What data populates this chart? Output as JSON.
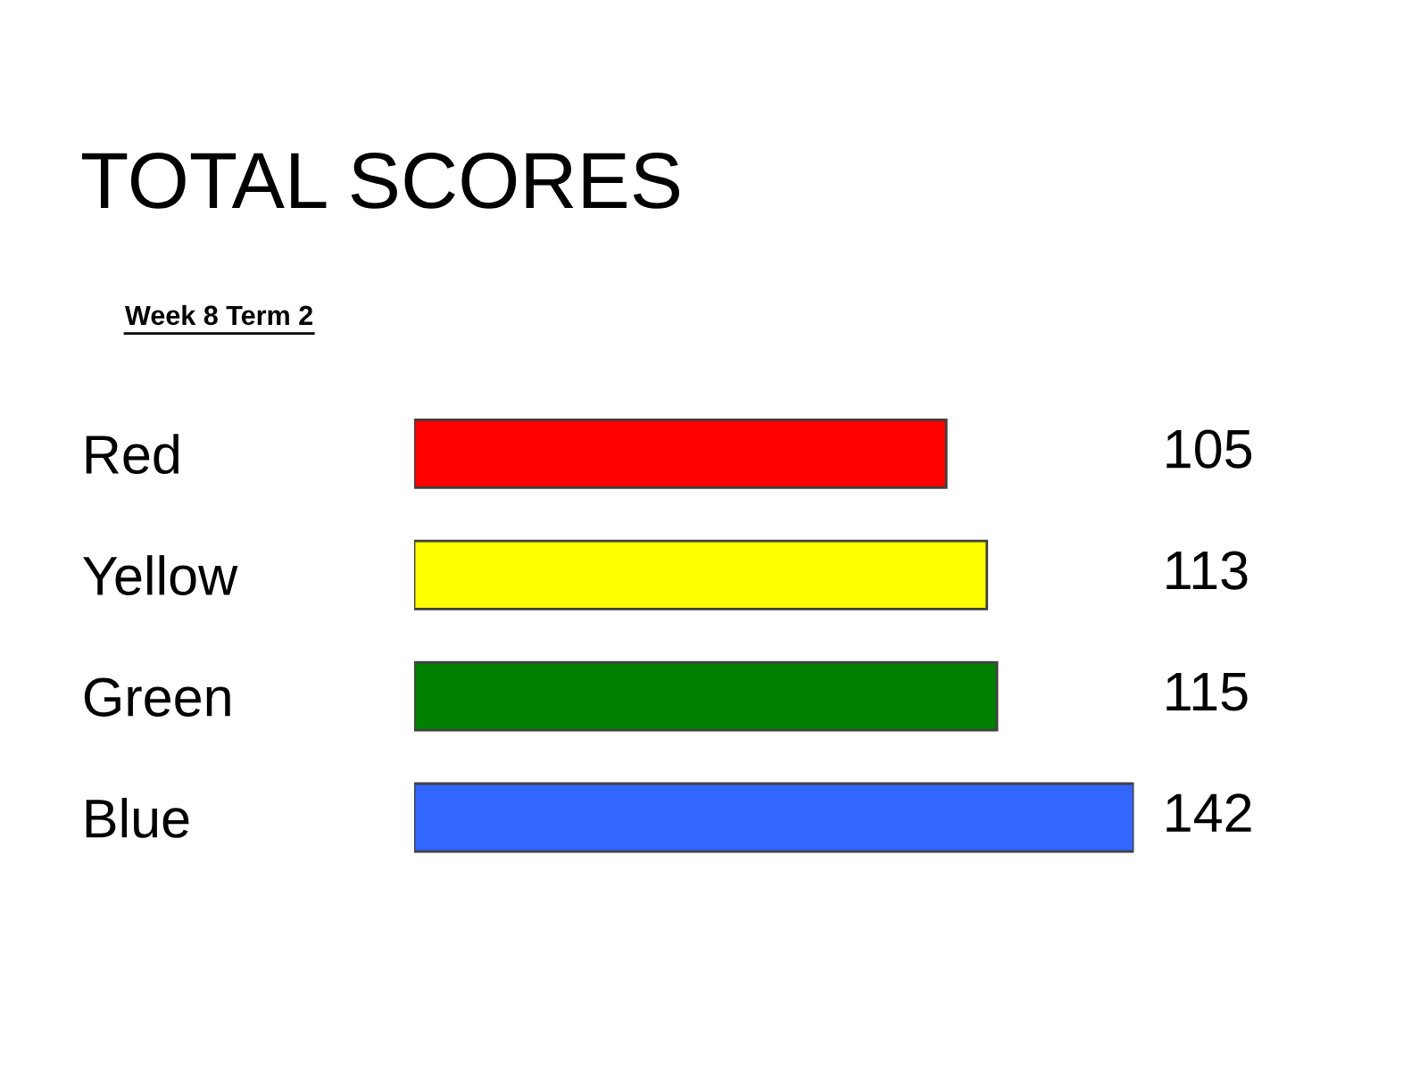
{
  "chart_data": {
    "type": "bar",
    "title": "TOTAL SCORES",
    "subtitle": "Week 8 Term 2",
    "orientation": "horizontal",
    "categories": [
      "Red",
      "Yellow",
      "Green",
      "Blue"
    ],
    "values": [
      105,
      113,
      115,
      142
    ],
    "colors": [
      "#ff0000",
      "#ffff00",
      "#008000",
      "#3366ff"
    ],
    "data_labels": true,
    "tick_labels": "y",
    "grid": false,
    "legend": false
  }
}
